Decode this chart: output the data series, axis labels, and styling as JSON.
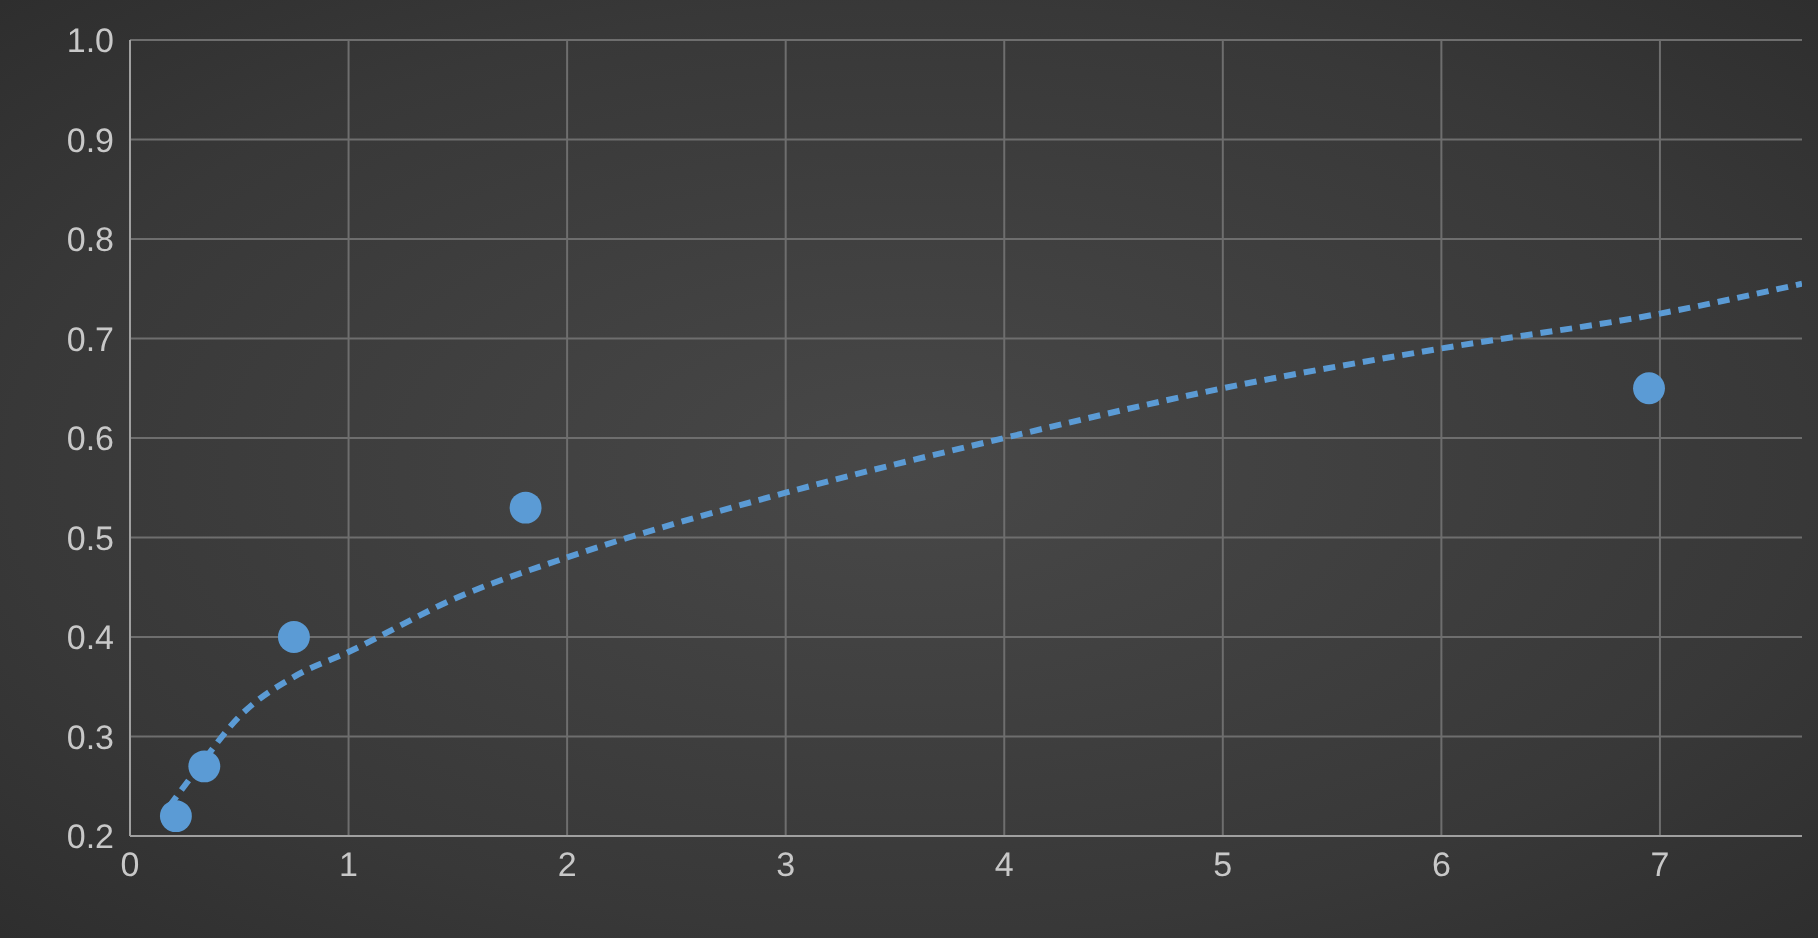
{
  "chart_data": {
    "type": "scatter",
    "xlim": [
      0,
      7.65
    ],
    "xticks": [
      0,
      1,
      2,
      3,
      4,
      5,
      6,
      7
    ],
    "ylim": [
      0.2,
      1.0
    ],
    "yticks": [
      {
        "value": 0.2,
        "label": "0.2"
      },
      {
        "value": 0.3,
        "label": "0.3"
      },
      {
        "value": 0.4,
        "label": "0.4"
      },
      {
        "value": 0.5,
        "label": "0.5"
      },
      {
        "value": 0.6,
        "label": "0.6"
      },
      {
        "value": 0.7,
        "label": "0.7"
      },
      {
        "value": 0.8,
        "label": "0.8"
      },
      {
        "value": 0.9,
        "label": "0.9"
      },
      {
        "value": 1.0,
        "label": "1.0"
      }
    ],
    "grid": true,
    "legend": false,
    "series": [
      {
        "color": "#5b9bd5",
        "marker": "circle",
        "x": [
          0.21,
          0.34,
          0.75,
          1.81,
          6.95
        ],
        "values": [
          0.22,
          0.27,
          0.4,
          0.53,
          0.65
        ]
      },
      {
        "type": "line",
        "color": "#5b9bd5",
        "marker": "none",
        "line_style": "dashed",
        "x": [
          0.18,
          0.3,
          0.5,
          0.75,
          1,
          1.5,
          2,
          3,
          4,
          5,
          6,
          7,
          7.65
        ],
        "values": [
          0.23,
          0.265,
          0.32,
          0.36,
          0.385,
          0.44,
          0.48,
          0.545,
          0.6,
          0.65,
          0.69,
          0.725,
          0.755
        ]
      }
    ]
  }
}
